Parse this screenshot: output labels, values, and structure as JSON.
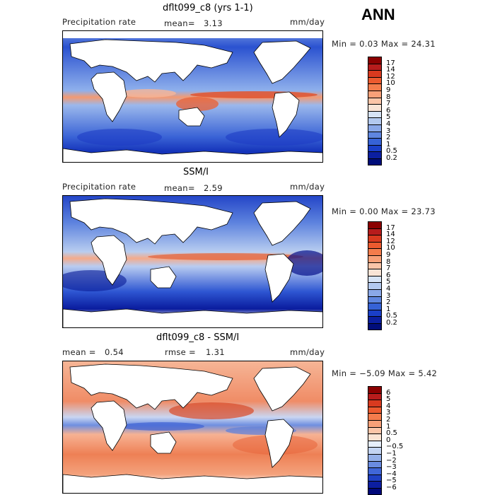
{
  "season": "ANN",
  "panels": [
    {
      "title": "dflt099_c8 (yrs 1-1)",
      "left_label": "Precipitation rate",
      "stat1_label": "mean=",
      "stat1_value": "3.13",
      "stat2_label": "",
      "stat2_value": "",
      "units": "mm/day",
      "minmax": "Min =   0.03 Max =  24.31",
      "colorbar_labels": [
        "17",
        "14",
        "12",
        "10",
        "9",
        "8",
        "7",
        "6",
        "5",
        "4",
        "3",
        "2",
        "1",
        "0.5",
        "0.2"
      ],
      "colorbar_colors": [
        "#8b0000",
        "#b71c1c",
        "#d93a1f",
        "#ec5a2f",
        "#f47c4c",
        "#f8a078",
        "#fbc5a8",
        "#f9e4d6",
        "#d6e3f5",
        "#b3c9ee",
        "#8aa8e8",
        "#5f86e0",
        "#3662d6",
        "#1a3fc8",
        "#0b1fa0",
        "#000d7a"
      ]
    },
    {
      "title": "SSM/I",
      "left_label": "Precipitation rate",
      "stat1_label": "mean=",
      "stat1_value": "2.59",
      "stat2_label": "",
      "stat2_value": "",
      "units": "mm/day",
      "minmax": "Min =   0.00 Max =  23.73",
      "colorbar_labels": [
        "17",
        "14",
        "12",
        "10",
        "9",
        "8",
        "7",
        "6",
        "5",
        "4",
        "3",
        "2",
        "1",
        "0.5",
        "0.2"
      ],
      "colorbar_colors": [
        "#8b0000",
        "#b71c1c",
        "#d93a1f",
        "#ec5a2f",
        "#f47c4c",
        "#f8a078",
        "#fbc5a8",
        "#f9e4d6",
        "#d6e3f5",
        "#b3c9ee",
        "#8aa8e8",
        "#5f86e0",
        "#3662d6",
        "#1a3fc8",
        "#0b1fa0",
        "#000d7a"
      ]
    },
    {
      "title": "dflt099_c8 - SSM/I",
      "left_label": "",
      "stat1_label": "mean =",
      "stat1_value": "0.54",
      "stat2_label": "rmse =",
      "stat2_value": "1.31",
      "units": "mm/day",
      "minmax": "Min =  −5.09 Max =   5.42",
      "colorbar_labels": [
        "6",
        "5",
        "4",
        "3",
        "2",
        "1",
        "0.5",
        "0",
        "−0.5",
        "−1",
        "−2",
        "−3",
        "−4",
        "−5",
        "−6"
      ],
      "colorbar_colors": [
        "#8b0000",
        "#b71c1c",
        "#d93a1f",
        "#ec5a2f",
        "#f47c4c",
        "#f8a078",
        "#fbc5a8",
        "#fbe3d3",
        "#e6eefa",
        "#c3d4f2",
        "#94b0e9",
        "#6a8ce1",
        "#4066d8",
        "#1f40c4",
        "#0c1ea0",
        "#00087a"
      ]
    }
  ]
}
